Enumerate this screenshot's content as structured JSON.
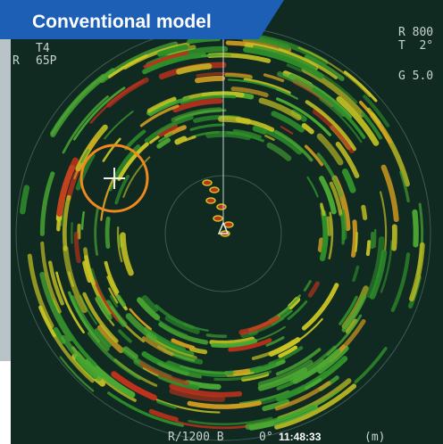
{
  "header": {
    "label": "Conventional model"
  },
  "readouts": {
    "range": "R 800",
    "tilt": "T  2°",
    "gain": "G 5.0",
    "left_top": "T4",
    "left_bottom": "65P",
    "left_edge": "R"
  },
  "footer": {
    "range": "R/1200 B",
    "bearing": "0°",
    "time": "11:48:33",
    "unit": "(m)"
  }
}
